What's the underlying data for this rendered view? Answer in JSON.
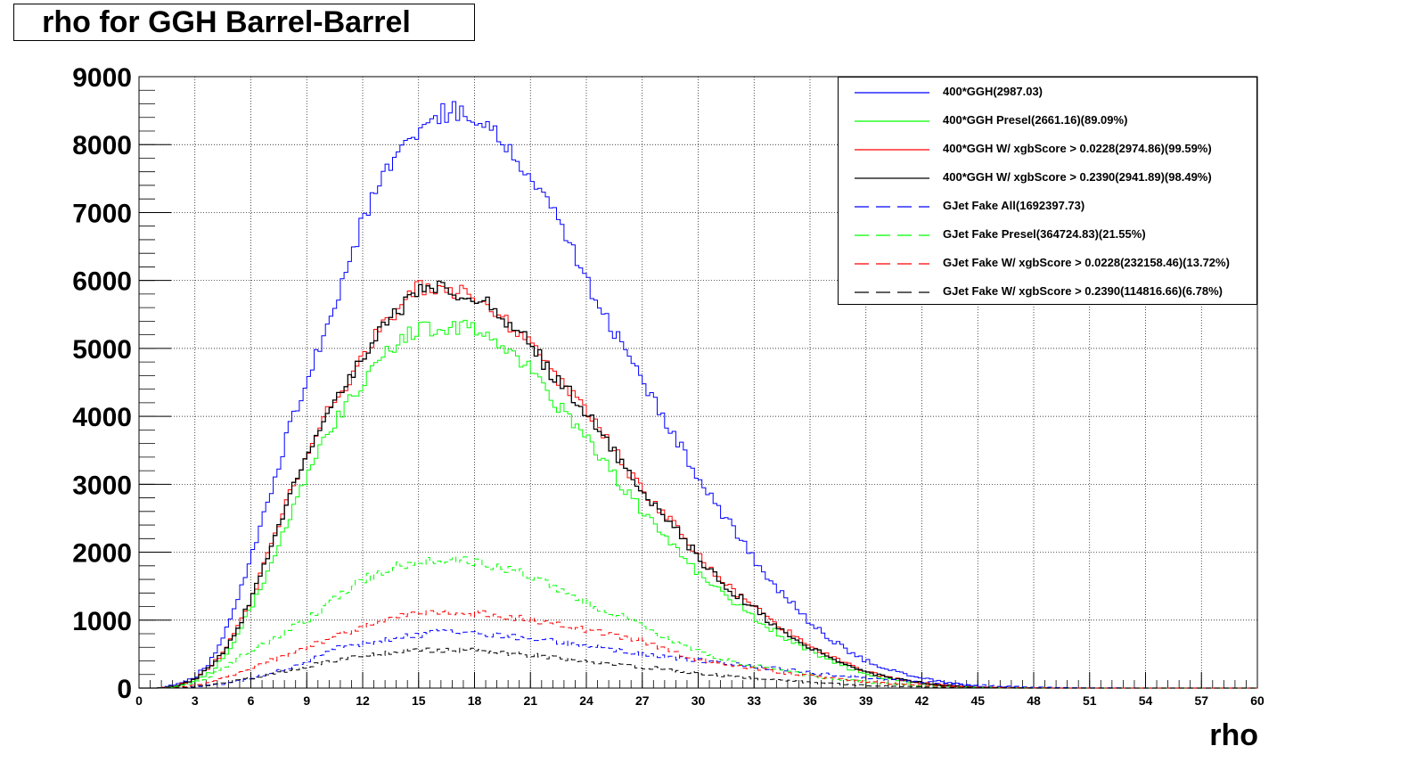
{
  "chart_data": {
    "type": "line",
    "title": "rho for GGH Barrel-Barrel",
    "xlabel": "rho",
    "ylabel": "",
    "xlim": [
      0,
      60
    ],
    "ylim": [
      0,
      9000
    ],
    "grid": true,
    "legend_position": "top-right",
    "x_ticks": [
      "0",
      "3",
      "6",
      "9",
      "12",
      "15",
      "18",
      "21",
      "24",
      "27",
      "30",
      "33",
      "36",
      "39",
      "42",
      "45",
      "48",
      "51",
      "54",
      "57",
      "60"
    ],
    "y_ticks": [
      "0",
      "1000",
      "2000",
      "3000",
      "4000",
      "5000",
      "6000",
      "7000",
      "8000",
      "9000"
    ],
    "x": [
      0,
      1,
      2,
      3,
      4,
      5,
      6,
      7,
      8,
      9,
      10,
      11,
      12,
      13,
      14,
      15,
      16,
      17,
      18,
      19,
      20,
      21,
      22,
      23,
      24,
      25,
      26,
      27,
      28,
      29,
      30,
      31,
      32,
      33,
      34,
      35,
      36,
      37,
      38,
      39,
      40,
      41,
      42,
      43,
      44,
      45,
      46,
      47,
      48,
      49,
      50,
      51,
      52,
      53,
      54,
      55,
      56,
      57,
      58,
      59,
      60
    ],
    "series": [
      {
        "name": "400*GGH(2987.03)",
        "color": "#0000ff",
        "dash": "solid",
        "values": [
          0,
          0,
          50,
          150,
          450,
          1050,
          1900,
          2800,
          3800,
          4500,
          5300,
          6000,
          6900,
          7500,
          7900,
          8200,
          8450,
          8500,
          8400,
          8200,
          7900,
          7500,
          7100,
          6600,
          6000,
          5500,
          5000,
          4500,
          4050,
          3600,
          3100,
          2700,
          2300,
          1900,
          1550,
          1250,
          950,
          750,
          550,
          400,
          300,
          220,
          150,
          100,
          60,
          30,
          15,
          8,
          5,
          0,
          0,
          0,
          0,
          0,
          0,
          0,
          0,
          0,
          0,
          0,
          0
        ]
      },
      {
        "name": "400*GGH Presel(2661.16)(89.09%)",
        "color": "#00ff00",
        "dash": "solid",
        "values": [
          0,
          0,
          20,
          100,
          250,
          650,
          1150,
          1800,
          2500,
          3100,
          3700,
          4100,
          4500,
          4900,
          5100,
          5300,
          5300,
          5300,
          5300,
          5100,
          4900,
          4700,
          4300,
          4000,
          3700,
          3300,
          2950,
          2600,
          2300,
          2000,
          1700,
          1450,
          1250,
          1050,
          850,
          700,
          550,
          420,
          300,
          210,
          150,
          100,
          70,
          40,
          20,
          10,
          5,
          0,
          0,
          0,
          0,
          0,
          0,
          0,
          0,
          0,
          0,
          0,
          0,
          0,
          0
        ]
      },
      {
        "name": "400*GGH W/ xgbScore > 0.0228(2974.86)(99.59%)",
        "color": "#ff0000",
        "dash": "solid",
        "values": [
          0,
          0,
          30,
          130,
          350,
          750,
          1300,
          2000,
          2800,
          3400,
          4000,
          4400,
          4900,
          5300,
          5600,
          5900,
          5900,
          5850,
          5800,
          5600,
          5300,
          5100,
          4700,
          4400,
          4100,
          3700,
          3300,
          2900,
          2600,
          2300,
          1950,
          1650,
          1400,
          1200,
          950,
          800,
          620,
          480,
          350,
          250,
          170,
          120,
          80,
          50,
          25,
          12,
          6,
          0,
          0,
          0,
          0,
          0,
          0,
          0,
          0,
          0,
          0,
          0,
          0,
          0,
          0
        ]
      },
      {
        "name": "400*GGH W/ xgbScore > 0.2390(2941.89)(98.49%)",
        "color": "#000000",
        "dash": "solid",
        "values": [
          0,
          0,
          30,
          130,
          340,
          740,
          1280,
          1980,
          2780,
          3380,
          3980,
          4380,
          4880,
          5280,
          5580,
          5880,
          5880,
          5830,
          5780,
          5580,
          5280,
          5080,
          4680,
          4380,
          4080,
          3680,
          3280,
          2880,
          2580,
          2280,
          1930,
          1630,
          1380,
          1180,
          930,
          780,
          600,
          470,
          340,
          240,
          165,
          115,
          78,
          48,
          24,
          11,
          5,
          0,
          0,
          0,
          0,
          0,
          0,
          0,
          0,
          0,
          0,
          0,
          0,
          0,
          0
        ]
      },
      {
        "name": "GJet Fake All(1692397.73)",
        "color": "#0000ff",
        "dash": "long",
        "values": [
          0,
          0,
          10,
          20,
          50,
          80,
          150,
          220,
          300,
          400,
          520,
          620,
          650,
          680,
          750,
          780,
          820,
          830,
          830,
          780,
          760,
          740,
          700,
          660,
          620,
          580,
          540,
          500,
          470,
          440,
          410,
          380,
          350,
          320,
          290,
          260,
          230,
          200,
          175,
          150,
          130,
          110,
          90,
          75,
          60,
          45,
          30,
          20,
          15,
          10,
          5,
          3,
          2,
          1,
          0,
          0,
          0,
          0,
          0,
          0,
          0
        ]
      },
      {
        "name": "GJet Fake Presel(364724.83)(21.55%)",
        "color": "#00ff00",
        "dash": "long",
        "values": [
          0,
          0,
          20,
          80,
          200,
          380,
          550,
          700,
          850,
          1000,
          1200,
          1400,
          1600,
          1700,
          1800,
          1850,
          1900,
          1900,
          1850,
          1800,
          1750,
          1650,
          1550,
          1400,
          1250,
          1150,
          1050,
          900,
          800,
          650,
          550,
          450,
          380,
          330,
          270,
          230,
          190,
          150,
          120,
          90,
          70,
          50,
          35,
          25,
          18,
          12,
          8,
          5,
          3,
          0,
          0,
          0,
          0,
          0,
          0,
          0,
          0,
          0,
          0,
          0,
          0
        ]
      },
      {
        "name": "GJet Fake W/ xgbScore > 0.0228(232158.46)(13.72%)",
        "color": "#ff0000",
        "dash": "long",
        "values": [
          0,
          0,
          10,
          40,
          110,
          200,
          300,
          400,
          500,
          600,
          700,
          800,
          900,
          1000,
          1050,
          1100,
          1100,
          1100,
          1100,
          1080,
          1050,
          1000,
          950,
          900,
          850,
          800,
          750,
          700,
          600,
          500,
          420,
          380,
          330,
          290,
          250,
          210,
          180,
          150,
          120,
          95,
          75,
          55,
          40,
          30,
          20,
          14,
          9,
          6,
          3,
          0,
          0,
          0,
          0,
          0,
          0,
          0,
          0,
          0,
          0,
          0,
          0
        ]
      },
      {
        "name": "GJet Fake W/ xgbScore > 0.2390(114816.66)(6.78%)",
        "color": "#000000",
        "dash": "long",
        "values": [
          0,
          0,
          5,
          20,
          50,
          90,
          140,
          200,
          260,
          320,
          380,
          430,
          470,
          510,
          540,
          560,
          560,
          560,
          550,
          530,
          510,
          490,
          460,
          430,
          400,
          370,
          340,
          310,
          280,
          250,
          220,
          195,
          170,
          145,
          120,
          100,
          82,
          66,
          52,
          40,
          30,
          22,
          15,
          10,
          7,
          4,
          2,
          1,
          0,
          0,
          0,
          0,
          0,
          0,
          0,
          0,
          0,
          0,
          0,
          0,
          0
        ]
      }
    ]
  },
  "legend": {
    "items": [
      "400*GGH(2987.03)",
      "400*GGH Presel(2661.16)(89.09%)",
      "400*GGH W/ xgbScore > 0.0228(2974.86)(99.59%)",
      "400*GGH W/ xgbScore > 0.2390(2941.89)(98.49%)",
      "GJet Fake All(1692397.73)",
      "GJet Fake Presel(364724.83)(21.55%)",
      "GJet Fake W/ xgbScore > 0.0228(232158.46)(13.72%)",
      "GJet Fake W/ xgbScore > 0.2390(114816.66)(6.78%)"
    ]
  }
}
